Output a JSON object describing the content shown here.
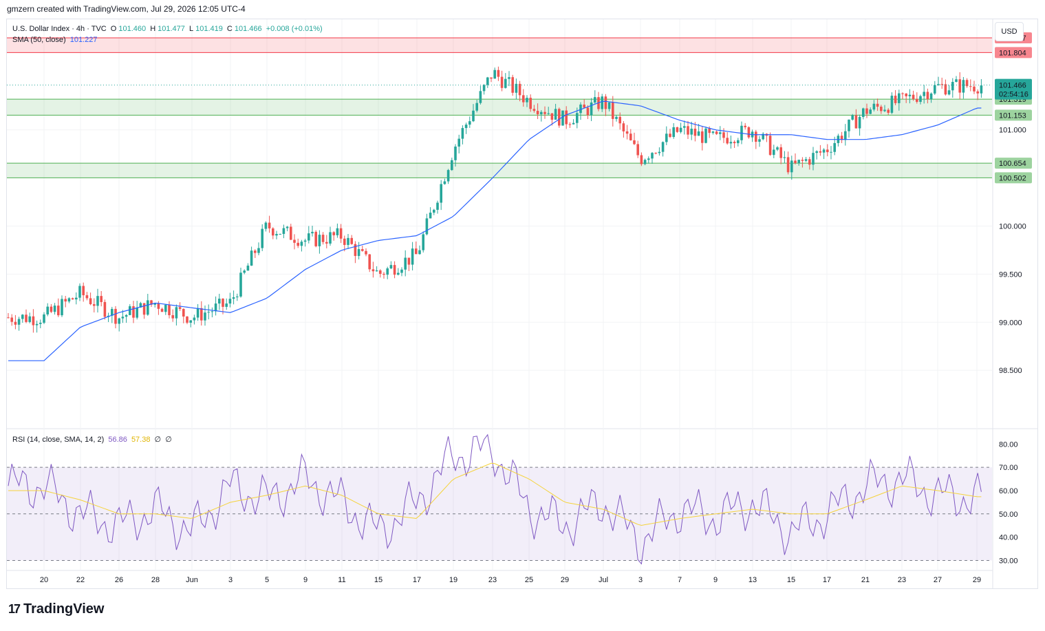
{
  "header": {
    "attribution": "gmzern created with TradingView.com, Jul 29, 2026 12:05 UTC-4"
  },
  "legend": {
    "symbol": "U.S. Dollar Index · 4h · TVC",
    "ohlc": {
      "o_label": "O",
      "o": "101.460",
      "h_label": "H",
      "h": "101.477",
      "l_label": "L",
      "l": "101.419",
      "c_label": "C",
      "c": "101.466",
      "change": "+0.008 (+0.01%)"
    },
    "sma_label": "SMA (50, close)",
    "sma_value": "101.227",
    "rsi_label": "RSI (14, close, SMA, 14, 2)",
    "rsi_value": "56.86",
    "rsi_sma_value": "57.38",
    "rsi_extra1": "∅",
    "rsi_extra2": "∅"
  },
  "currency": "USD",
  "brand": {
    "logo": "17",
    "name": "TradingView"
  },
  "colors": {
    "up": "#26a69a",
    "down": "#ef5350",
    "sma": "#2962ff",
    "rsi": "#7e57c2",
    "rsi_sma": "#f5d33b",
    "support_zone": "#4caf50",
    "resistance_zone": "#f23645"
  },
  "chart_data": [
    {
      "type": "candlestick",
      "title": "U.S. Dollar Index · 4h · TVC",
      "x_ticks": [
        "20",
        "22",
        "26",
        "28",
        "Jun",
        "3",
        "5",
        "9",
        "11",
        "15",
        "17",
        "19",
        "23",
        "25",
        "29",
        "Jul",
        "3",
        "7",
        "9",
        "13",
        "15",
        "17",
        "21",
        "23",
        "27",
        "29"
      ],
      "y_ticks": [
        "98.500",
        "99.000",
        "99.500",
        "100.000",
        "101.000"
      ],
      "ylim": [
        97.9,
        102.15
      ],
      "last_price": {
        "value": "101.466",
        "countdown": "02:54:16"
      },
      "zones": [
        {
          "kind": "resistance",
          "from": "101.804",
          "to": "101.957"
        },
        {
          "kind": "support",
          "from": "101.153",
          "to": "101.319"
        },
        {
          "kind": "support",
          "from": "100.502",
          "to": "100.654"
        }
      ],
      "anchors": [
        [
          "20",
          99.05
        ],
        [
          "22",
          99.3
        ],
        [
          "26",
          99.05
        ],
        [
          "28",
          99.2
        ],
        [
          "Jun",
          99.05
        ],
        [
          "3",
          99.2
        ],
        [
          "5",
          100.0
        ],
        [
          "9",
          99.85
        ],
        [
          "11",
          99.9
        ],
        [
          "15",
          99.5
        ],
        [
          "17",
          99.7
        ],
        [
          "19",
          100.8
        ],
        [
          "23",
          101.6
        ],
        [
          "25",
          101.3
        ],
        [
          "29",
          101.1
        ],
        [
          "Jul",
          101.3
        ],
        [
          "3",
          100.7
        ],
        [
          "7",
          101.0
        ],
        [
          "9",
          100.9
        ],
        [
          "13",
          101.0
        ],
        [
          "15",
          100.6
        ],
        [
          "17",
          100.8
        ],
        [
          "21",
          101.2
        ],
        [
          "23",
          101.3
        ],
        [
          "27",
          101.45
        ],
        [
          "29",
          101.466
        ]
      ],
      "sma_anchors": [
        [
          "20",
          98.6
        ],
        [
          "22",
          98.95
        ],
        [
          "26",
          99.1
        ],
        [
          "28",
          99.2
        ],
        [
          "Jun",
          99.15
        ],
        [
          "3",
          99.1
        ],
        [
          "5",
          99.25
        ],
        [
          "9",
          99.55
        ],
        [
          "11",
          99.75
        ],
        [
          "15",
          99.85
        ],
        [
          "17",
          99.9
        ],
        [
          "19",
          100.1
        ],
        [
          "23",
          100.5
        ],
        [
          "25",
          100.9
        ],
        [
          "29",
          101.15
        ],
        [
          "Jul",
          101.3
        ],
        [
          "3",
          101.25
        ],
        [
          "7",
          101.1
        ],
        [
          "9",
          101.0
        ],
        [
          "13",
          100.95
        ],
        [
          "15",
          100.95
        ],
        [
          "17",
          100.9
        ],
        [
          "21",
          100.9
        ],
        [
          "23",
          100.95
        ],
        [
          "27",
          101.05
        ],
        [
          "29",
          101.227
        ]
      ]
    },
    {
      "type": "line",
      "title": "RSI (14, close, SMA, 14, 2)",
      "y_ticks": [
        "30.00",
        "40.00",
        "50.00",
        "60.00",
        "70.00",
        "80.00"
      ],
      "ylim": [
        26,
        86
      ],
      "bands": {
        "upper": 70,
        "middle": 50,
        "lower": 30
      },
      "series": [
        {
          "name": "RSI",
          "anchors": [
            [
              "20",
              62
            ],
            [
              "22",
              50
            ],
            [
              "26",
              45
            ],
            [
              "28",
              52
            ],
            [
              "Jun",
              42
            ],
            [
              "3",
              62
            ],
            [
              "5",
              56
            ],
            [
              "9",
              65
            ],
            [
              "11",
              55
            ],
            [
              "15",
              42
            ],
            [
              "17",
              55
            ],
            [
              "19",
              75
            ],
            [
              "23",
              78
            ],
            [
              "25",
              52
            ],
            [
              "29",
              45
            ],
            [
              "Jul",
              55
            ],
            [
              "3",
              38
            ],
            [
              "7",
              52
            ],
            [
              "9",
              48
            ],
            [
              "13",
              55
            ],
            [
              "15",
              42
            ],
            [
              "17",
              50
            ],
            [
              "21",
              62
            ],
            [
              "23",
              65
            ],
            [
              "27",
              58
            ],
            [
              "29",
              56.86
            ]
          ]
        },
        {
          "name": "RSI-based MA",
          "anchors": [
            [
              "20",
              60
            ],
            [
              "22",
              56
            ],
            [
              "26",
              50
            ],
            [
              "28",
              50
            ],
            [
              "Jun",
              48
            ],
            [
              "3",
              55
            ],
            [
              "5",
              58
            ],
            [
              "9",
              62
            ],
            [
              "11",
              58
            ],
            [
              "15",
              50
            ],
            [
              "17",
              48
            ],
            [
              "19",
              65
            ],
            [
              "23",
              72
            ],
            [
              "25",
              65
            ],
            [
              "29",
              55
            ],
            [
              "Jul",
              52
            ],
            [
              "3",
              45
            ],
            [
              "7",
              48
            ],
            [
              "9",
              50
            ],
            [
              "13",
              52
            ],
            [
              "15",
              50
            ],
            [
              "17",
              50
            ],
            [
              "21",
              56
            ],
            [
              "23",
              62
            ],
            [
              "27",
              60
            ],
            [
              "29",
              57.38
            ]
          ]
        }
      ]
    }
  ]
}
